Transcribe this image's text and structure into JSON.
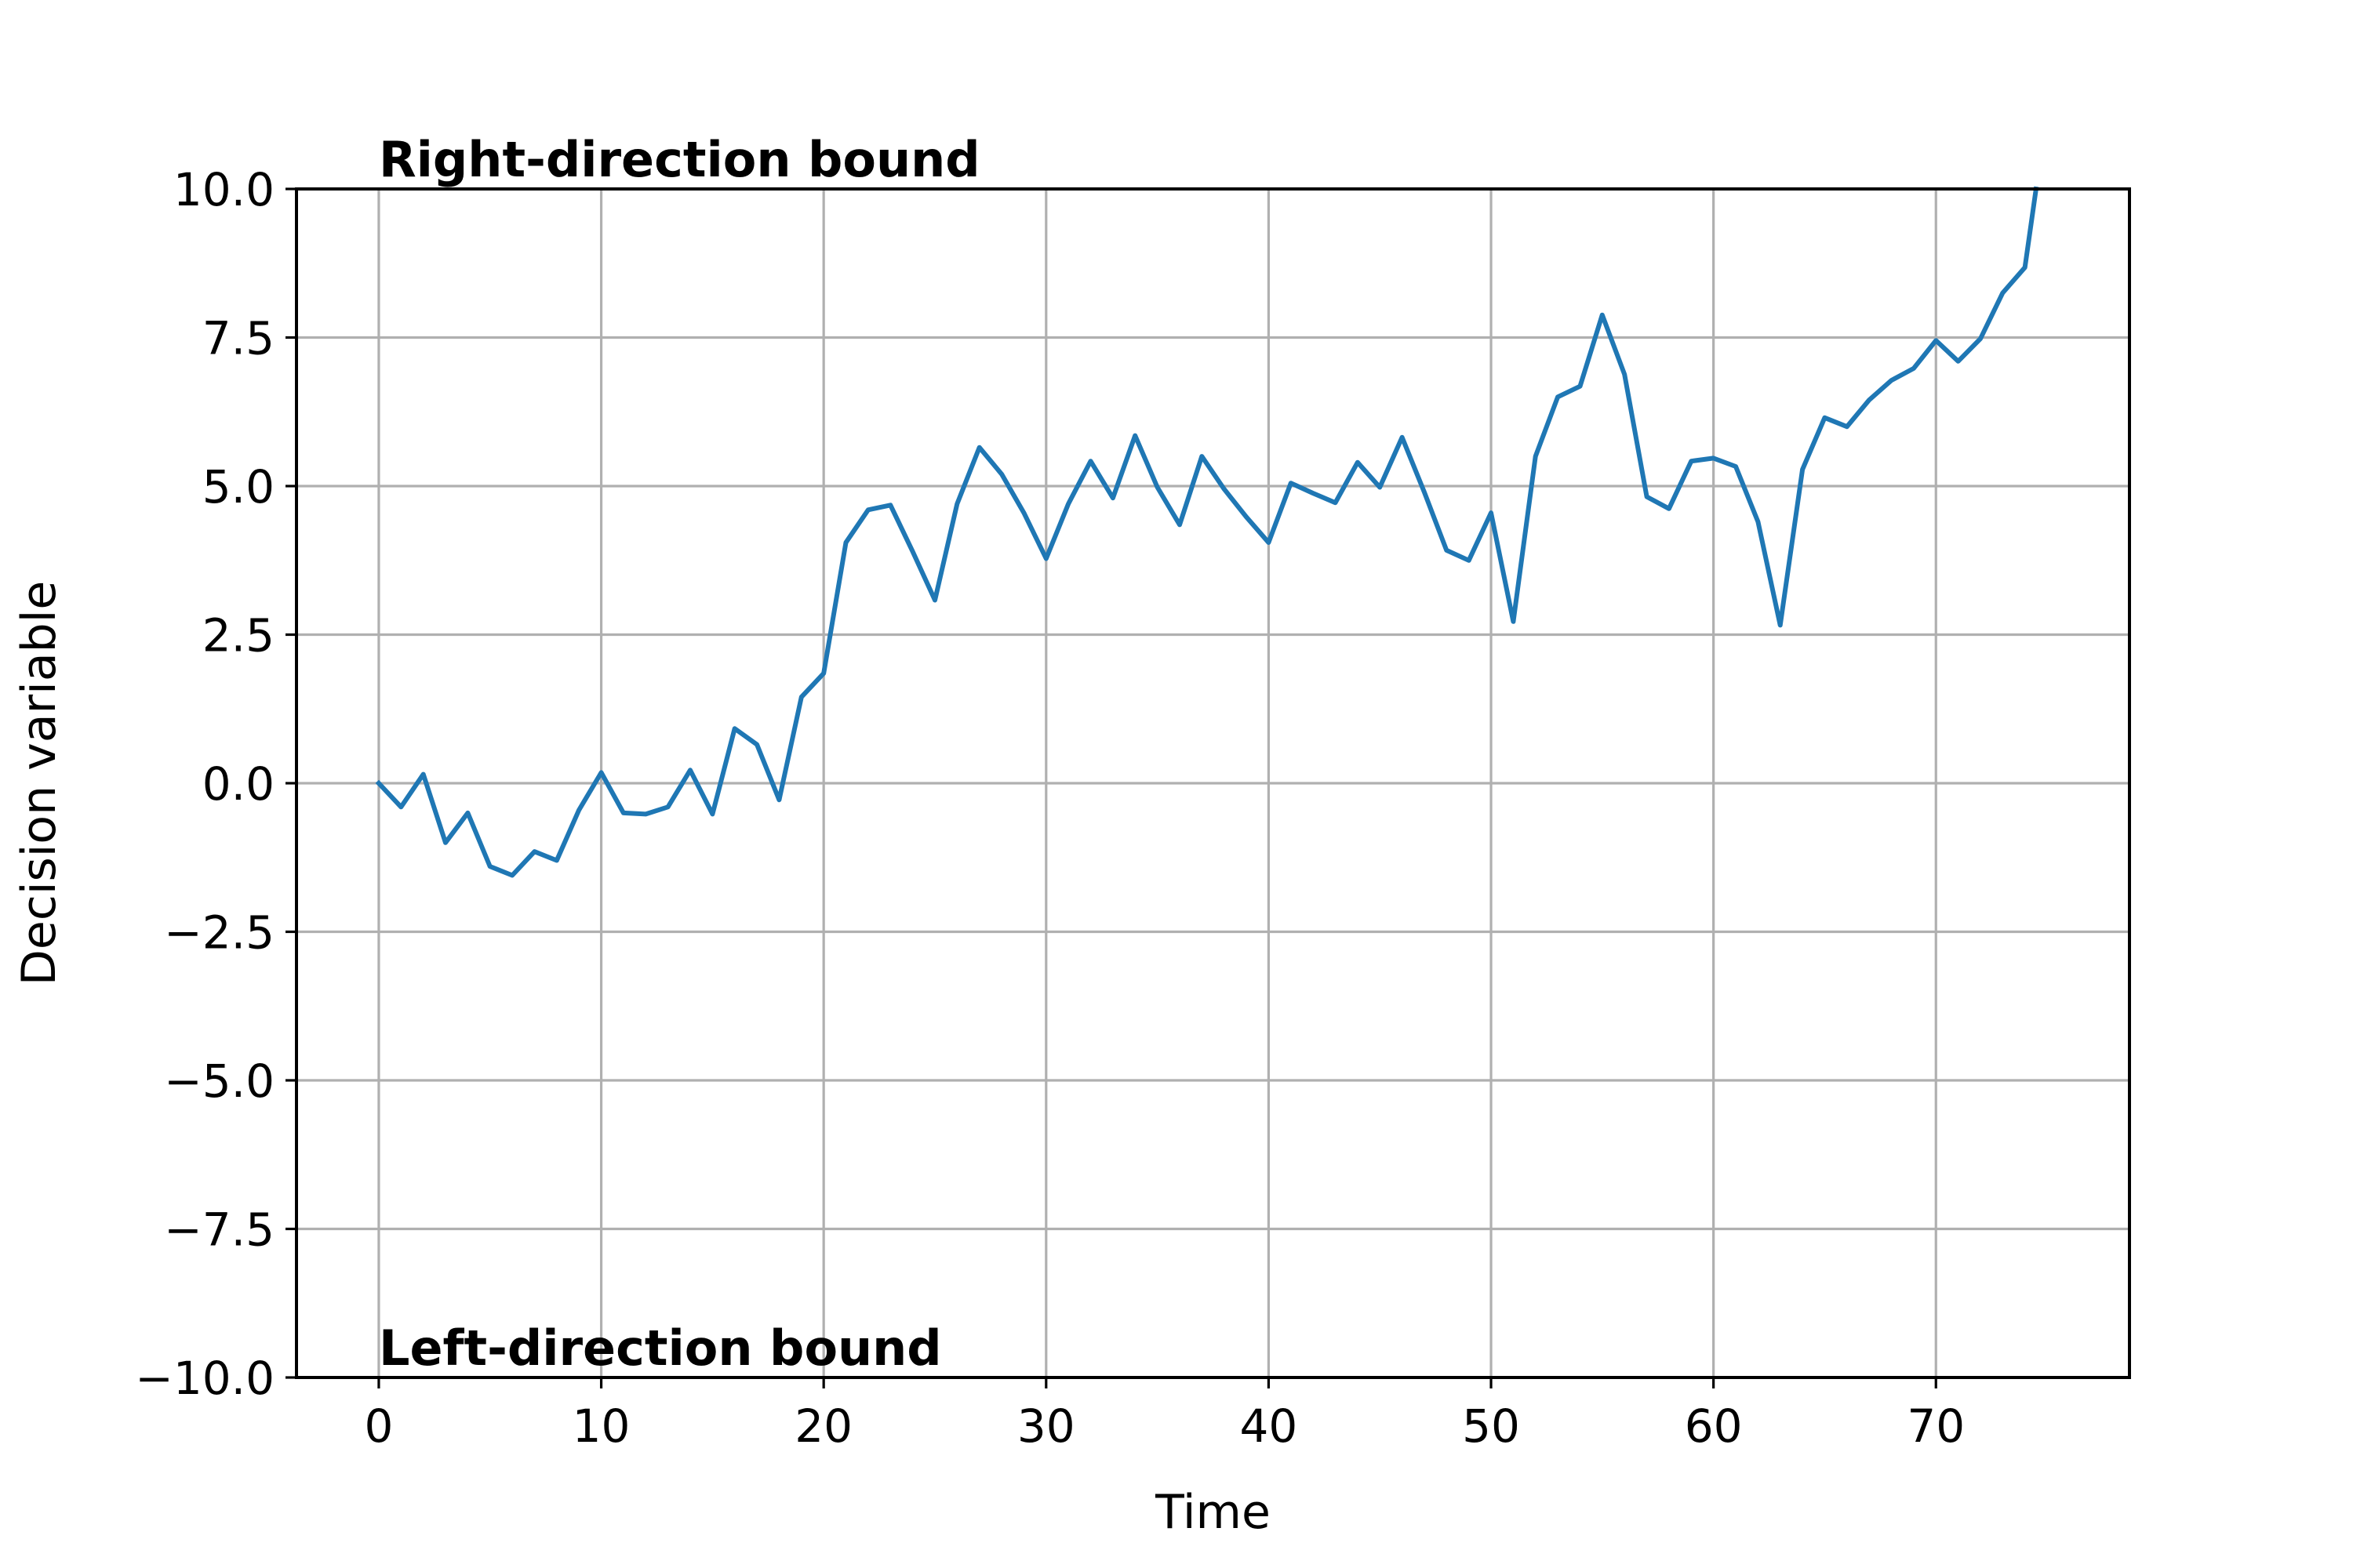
{
  "chart_data": {
    "type": "line",
    "title": "",
    "xlabel": "Time",
    "ylabel": "Decision variable",
    "xlim": [
      -3.7,
      78.7
    ],
    "ylim": [
      -10,
      10
    ],
    "xticks": [
      0,
      10,
      20,
      30,
      40,
      50,
      60,
      70
    ],
    "xtick_labels": [
      "0",
      "10",
      "20",
      "30",
      "40",
      "50",
      "60",
      "70"
    ],
    "yticks": [
      -10,
      -7.5,
      -5,
      -2.5,
      0,
      2.5,
      5,
      7.5,
      10
    ],
    "ytick_labels": [
      "−10.0",
      "−7.5",
      "−5.0",
      "−2.5",
      "0.0",
      "2.5",
      "5.0",
      "7.5",
      "10.0"
    ],
    "grid": true,
    "legend": null,
    "line_color": "#1f77b4",
    "grid_color": "#b0b0b0",
    "annotations": [
      {
        "text": "Right-direction bound",
        "x": 0,
        "y": 10.5
      },
      {
        "text": "Left-direction bound",
        "x": 0,
        "y": -9.5
      }
    ],
    "series": [
      {
        "x": [
          0,
          1,
          2,
          3,
          4,
          5,
          6,
          7,
          8,
          9,
          10,
          11,
          12,
          13,
          14,
          15,
          16,
          17,
          18,
          19,
          20,
          21,
          22,
          23,
          24,
          25,
          26,
          27,
          28,
          29,
          30,
          31,
          32,
          33,
          34,
          35,
          36,
          37,
          38,
          39,
          40,
          41,
          42,
          43,
          44,
          45,
          46,
          47,
          48,
          49,
          50,
          51,
          52,
          53,
          54,
          55,
          56,
          57,
          58,
          59,
          60,
          61,
          62,
          63,
          64,
          65,
          66,
          67,
          68,
          69,
          70,
          71,
          72,
          73,
          74,
          74.5
        ],
        "y": [
          0.0,
          -0.4,
          0.15,
          -1.0,
          -0.5,
          -1.4,
          -1.55,
          -1.15,
          -1.3,
          -0.45,
          0.18,
          -0.5,
          -0.52,
          -0.4,
          0.22,
          -0.52,
          0.92,
          0.65,
          -0.28,
          1.45,
          1.85,
          4.05,
          4.6,
          4.68,
          3.9,
          3.08,
          4.7,
          5.65,
          5.2,
          4.55,
          3.78,
          4.7,
          5.42,
          4.8,
          5.85,
          4.98,
          4.35,
          5.5,
          4.95,
          4.48,
          4.05,
          5.05,
          4.88,
          4.72,
          5.4,
          4.98,
          5.82,
          4.9,
          3.92,
          3.75,
          4.55,
          2.72,
          5.5,
          6.5,
          6.68,
          7.88,
          6.88,
          4.82,
          4.62,
          5.42,
          5.47,
          5.33,
          4.4,
          2.66,
          5.28,
          6.15,
          6.0,
          6.45,
          6.78,
          6.98,
          7.45,
          7.1,
          7.48,
          8.25,
          8.68,
          10.0
        ]
      }
    ]
  }
}
